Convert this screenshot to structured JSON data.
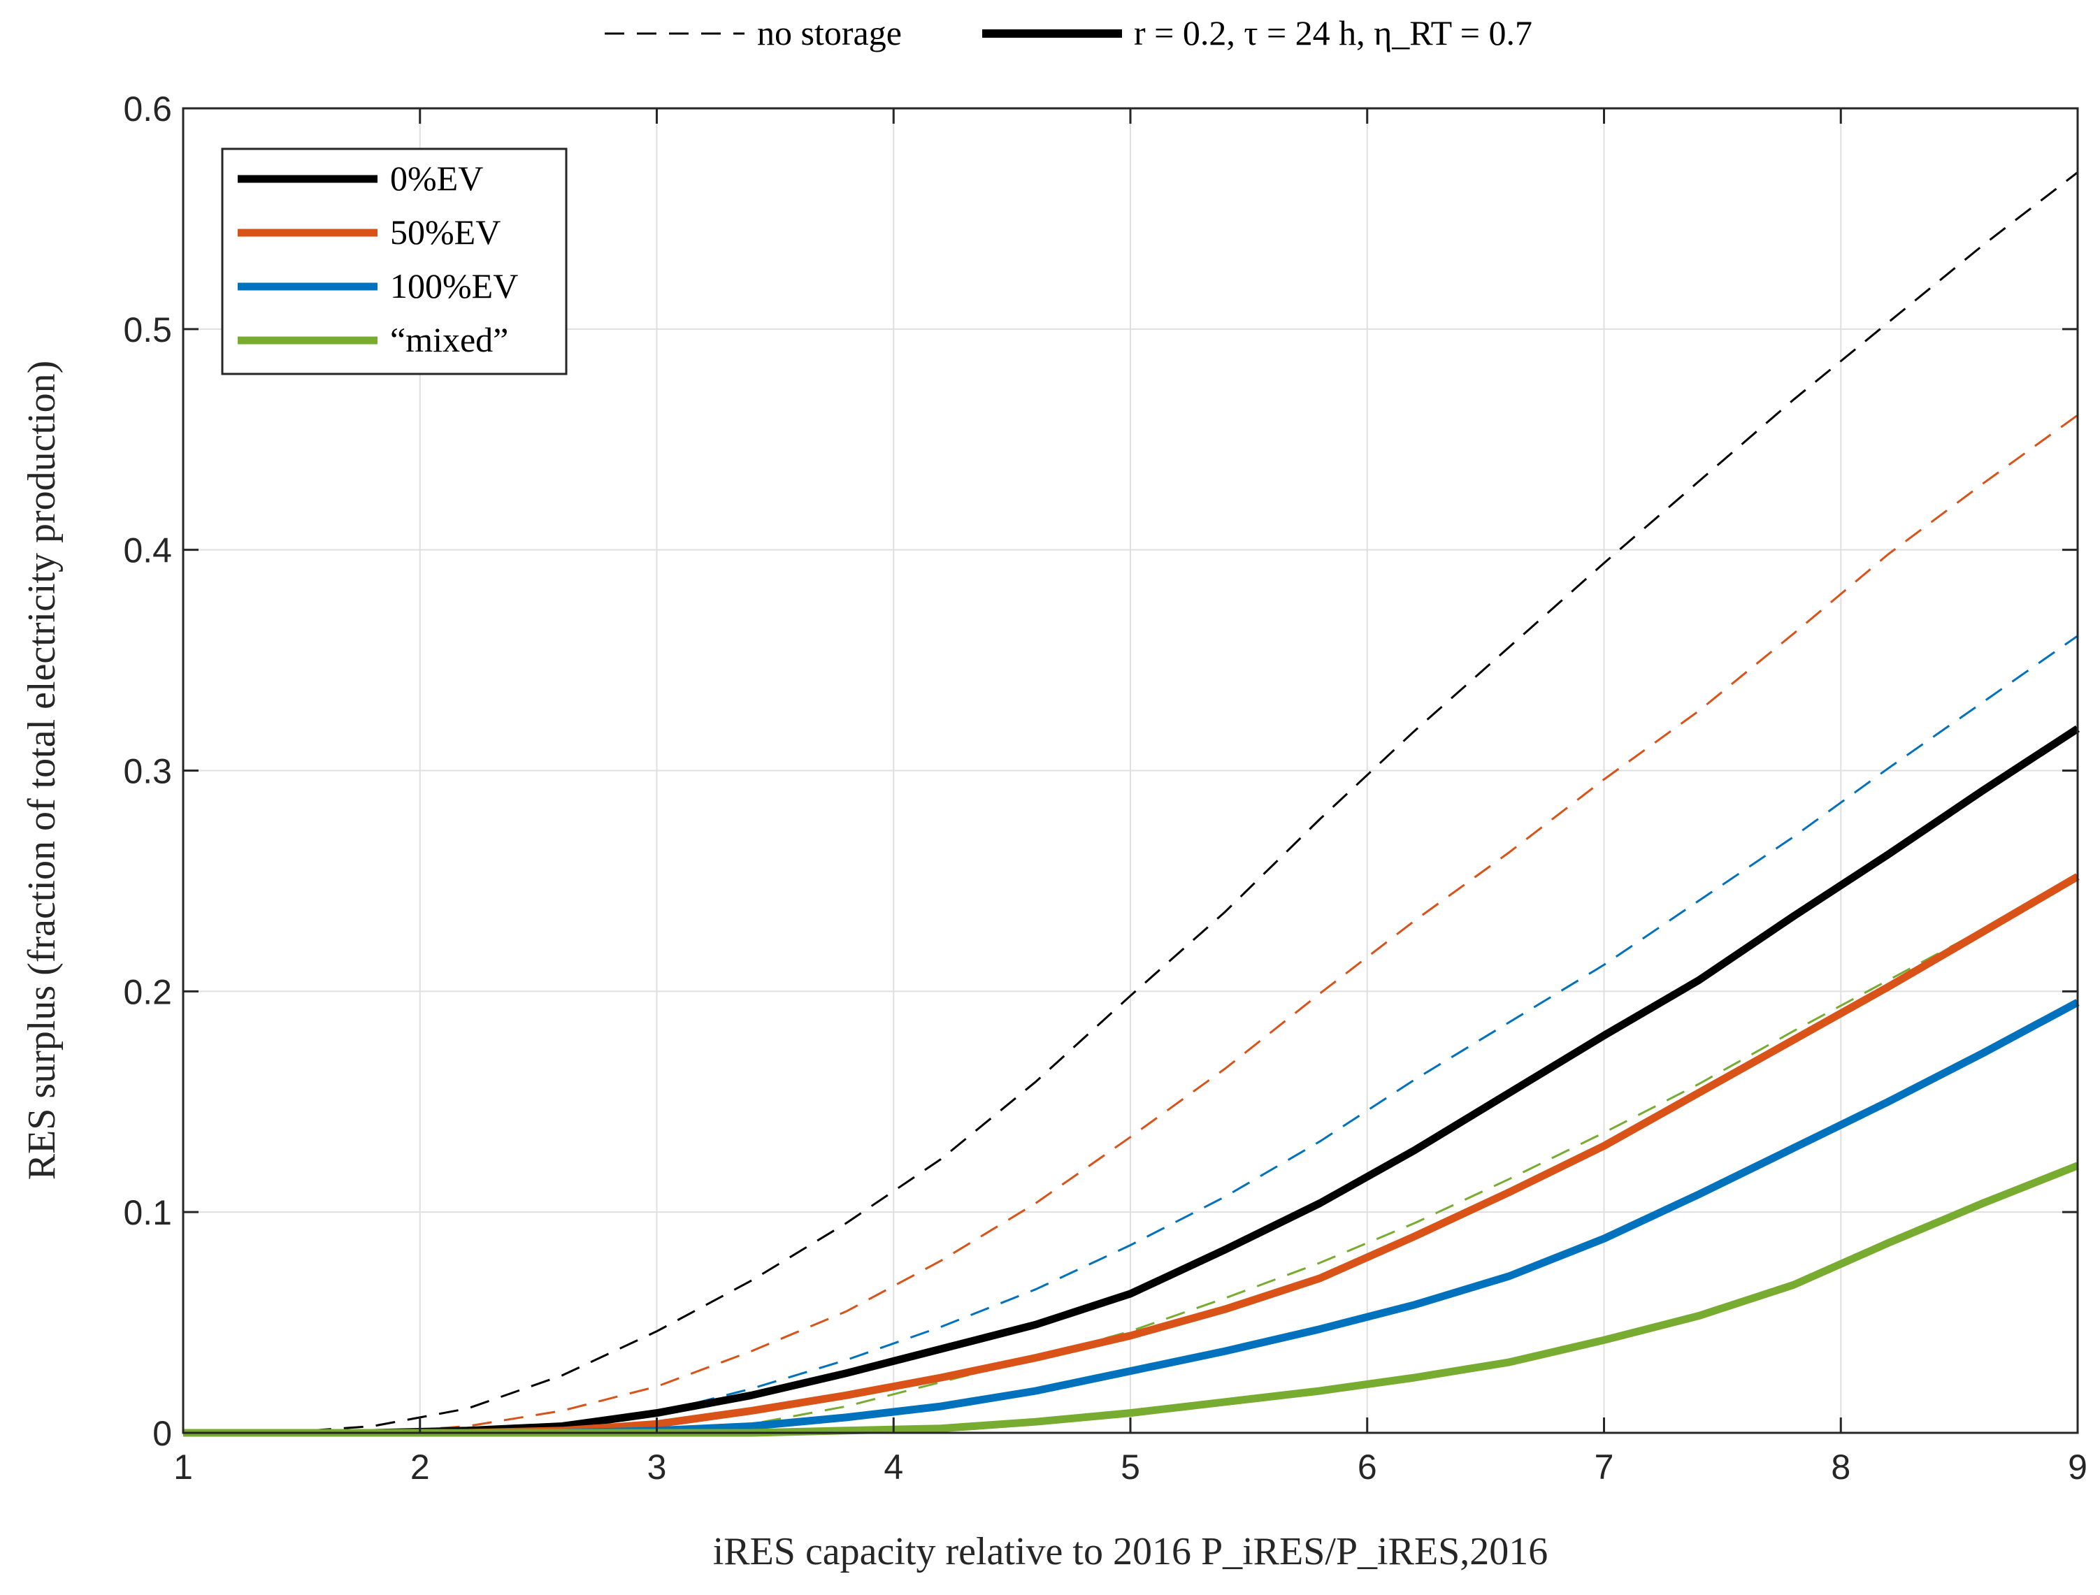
{
  "chart_data": {
    "type": "line",
    "xlabel": "iRES capacity relative to 2016 P_iRES/P_iRES,2016",
    "ylabel": "RES surplus (fraction of total electricity production)",
    "xlim": [
      1,
      9
    ],
    "ylim": [
      0,
      0.6
    ],
    "x_ticks": [
      "1",
      "2",
      "3",
      "4",
      "5",
      "6",
      "7",
      "8",
      "9"
    ],
    "y_ticks": [
      "0",
      "0.1",
      "0.2",
      "0.3",
      "0.4",
      "0.5",
      "0.6"
    ],
    "grid": true,
    "style_legend": {
      "placement": "top-outside",
      "entries": [
        {
          "text": "no storage",
          "style": "dashed"
        },
        {
          "text": "r = 0.2, τ = 24 h, η_RT = 0.7",
          "style": "solid"
        }
      ]
    },
    "legend": {
      "placement": "top-left",
      "entries": [
        {
          "text": "0%EV",
          "color": "#000000"
        },
        {
          "text": "50%EV",
          "color": "#d95319"
        },
        {
          "text": "100%EV",
          "color": "#0072bd"
        },
        {
          "text": "“mixed”",
          "color": "#77ac30"
        }
      ]
    },
    "x": [
      1.0,
      1.4,
      1.8,
      2.2,
      2.6,
      3.0,
      3.4,
      3.8,
      4.2,
      4.6,
      5.0,
      5.4,
      5.8,
      6.2,
      6.6,
      7.0,
      7.4,
      7.8,
      8.2,
      8.6,
      9.0
    ],
    "series": [
      {
        "case": 0,
        "style": "solid",
        "color": "#000000",
        "values": [
          0.0,
          0.0,
          0.0,
          0.001,
          0.003,
          0.009,
          0.017,
          0.027,
          0.038,
          0.049,
          0.063,
          0.083,
          0.104,
          0.128,
          0.154,
          0.18,
          0.205,
          0.234,
          0.262,
          0.291,
          0.319
        ]
      },
      {
        "case": 1,
        "style": "solid",
        "color": "#d95319",
        "values": [
          0.0,
          0.0,
          0.0,
          0.0,
          0.001,
          0.004,
          0.01,
          0.017,
          0.025,
          0.034,
          0.044,
          0.056,
          0.07,
          0.089,
          0.109,
          0.13,
          0.154,
          0.178,
          0.202,
          0.227,
          0.252
        ]
      },
      {
        "case": 2,
        "style": "solid",
        "color": "#0072bd",
        "values": [
          0.0,
          0.0,
          0.0,
          0.0,
          0.0,
          0.001,
          0.003,
          0.007,
          0.012,
          0.019,
          0.028,
          0.037,
          0.047,
          0.058,
          0.071,
          0.088,
          0.108,
          0.129,
          0.15,
          0.172,
          0.195
        ]
      },
      {
        "case": 3,
        "style": "solid",
        "color": "#77ac30",
        "values": [
          0.0,
          0.0,
          0.0,
          0.0,
          0.0,
          0.0,
          0.0,
          0.001,
          0.002,
          0.005,
          0.009,
          0.014,
          0.019,
          0.025,
          0.032,
          0.042,
          0.053,
          0.067,
          0.086,
          0.104,
          0.121
        ]
      },
      {
        "case": 0,
        "style": "dashed",
        "color": "#000000",
        "values": [
          0.0,
          0.0,
          0.003,
          0.011,
          0.026,
          0.046,
          0.069,
          0.095,
          0.124,
          0.159,
          0.198,
          0.236,
          0.278,
          0.318,
          0.356,
          0.394,
          0.431,
          0.468,
          0.503,
          0.538,
          0.571
        ]
      },
      {
        "case": 1,
        "style": "dashed",
        "color": "#d95319",
        "values": [
          0.0,
          0.0,
          0.0,
          0.003,
          0.01,
          0.021,
          0.037,
          0.055,
          0.078,
          0.104,
          0.134,
          0.165,
          0.199,
          0.232,
          0.263,
          0.296,
          0.327,
          0.362,
          0.398,
          0.43,
          0.461
        ]
      },
      {
        "case": 2,
        "style": "dashed",
        "color": "#0072bd",
        "values": [
          0.0,
          0.0,
          0.0,
          0.0,
          0.003,
          0.009,
          0.02,
          0.033,
          0.048,
          0.065,
          0.085,
          0.107,
          0.132,
          0.16,
          0.186,
          0.212,
          0.241,
          0.27,
          0.301,
          0.331,
          0.361
        ]
      },
      {
        "case": 3,
        "style": "dashed",
        "color": "#77ac30",
        "values": [
          0.0,
          0.0,
          0.0,
          0.0,
          0.0,
          0.001,
          0.004,
          0.012,
          0.023,
          0.034,
          0.046,
          0.061,
          0.077,
          0.095,
          0.115,
          0.136,
          0.158,
          0.182,
          0.205,
          0.228,
          0.251
        ]
      }
    ]
  }
}
